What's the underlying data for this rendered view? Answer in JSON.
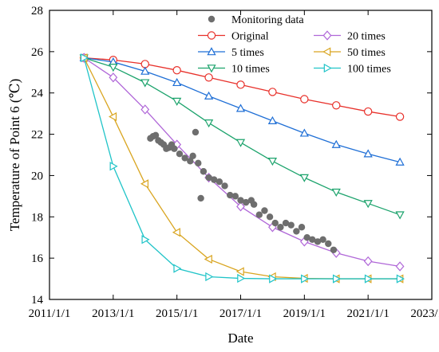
{
  "chart_data": {
    "type": "line",
    "xlabel": "Date",
    "ylabel": "Temperature of Point 6 (℃)",
    "xlim": [
      "2011/1/1",
      "2023/1/1"
    ],
    "ylim": [
      14,
      28
    ],
    "x_ticks": [
      "2011/1/1",
      "2013/1/1",
      "2015/1/1",
      "2017/1/1",
      "2019/1/1",
      "2021/1/1",
      "2023/1/1"
    ],
    "y_ticks": [
      14,
      16,
      18,
      20,
      22,
      24,
      26,
      28
    ],
    "grid": false,
    "legend_position": "top-right",
    "model_x": [
      "2012/2/1",
      "2013/1/1",
      "2014/1/1",
      "2015/1/1",
      "2016/1/1",
      "2017/1/1",
      "2018/1/1",
      "2019/1/1",
      "2020/1/1",
      "2021/1/1",
      "2022/1/1"
    ],
    "series": [
      {
        "name": "Original",
        "marker": "circle",
        "color": "#e8302a",
        "values": [
          25.7,
          25.6,
          25.4,
          25.1,
          24.75,
          24.4,
          24.05,
          23.7,
          23.4,
          23.1,
          22.85
        ]
      },
      {
        "name": "5 times",
        "marker": "triangle-up",
        "color": "#1f6fd6",
        "values": [
          25.7,
          25.5,
          25.05,
          24.5,
          23.85,
          23.25,
          22.65,
          22.05,
          21.5,
          21.05,
          20.65
        ]
      },
      {
        "name": "10 times",
        "marker": "triangle-down",
        "color": "#1ca36c",
        "values": [
          25.7,
          25.25,
          24.5,
          23.6,
          22.55,
          21.6,
          20.7,
          19.9,
          19.2,
          18.65,
          18.1
        ]
      },
      {
        "name": "20 times",
        "marker": "diamond",
        "color": "#b067d8",
        "values": [
          25.7,
          24.75,
          23.2,
          21.5,
          19.9,
          18.5,
          17.5,
          16.8,
          16.25,
          15.85,
          15.6
        ]
      },
      {
        "name": "50 times",
        "marker": "triangle-left",
        "color": "#d9a520",
        "values": [
          25.7,
          22.85,
          19.6,
          17.25,
          15.95,
          15.35,
          15.1,
          15.02,
          15.0,
          15.0,
          15.0
        ]
      },
      {
        "name": "100 times",
        "marker": "triangle-right",
        "color": "#20c4c8",
        "values": [
          25.7,
          20.45,
          16.9,
          15.5,
          15.1,
          15.02,
          15.0,
          15.0,
          15.0,
          15.0,
          15.0
        ]
      }
    ],
    "monitoring": {
      "name": "Monitoring data",
      "color": "#6e6e6e",
      "points": [
        [
          "2014/3/1",
          21.8
        ],
        [
          "2014/4/1",
          21.9
        ],
        [
          "2014/5/1",
          21.95
        ],
        [
          "2014/6/1",
          21.7
        ],
        [
          "2014/7/1",
          21.6
        ],
        [
          "2014/8/1",
          21.5
        ],
        [
          "2014/9/1",
          21.3
        ],
        [
          "2014/10/1",
          21.35
        ],
        [
          "2014/11/1",
          21.5
        ],
        [
          "2014/12/1",
          21.3
        ],
        [
          "2015/2/1",
          21.05
        ],
        [
          "2015/4/1",
          20.85
        ],
        [
          "2015/6/1",
          20.7
        ],
        [
          "2015/7/1",
          20.95
        ],
        [
          "2015/8/1",
          22.1
        ],
        [
          "2015/9/1",
          20.6
        ],
        [
          "2015/10/1",
          18.9
        ],
        [
          "2015/11/1",
          20.2
        ],
        [
          "2016/1/1",
          19.9
        ],
        [
          "2016/3/1",
          19.8
        ],
        [
          "2016/5/1",
          19.7
        ],
        [
          "2016/7/1",
          19.5
        ],
        [
          "2016/9/1",
          19.05
        ],
        [
          "2016/11/1",
          19.0
        ],
        [
          "2017/1/1",
          18.8
        ],
        [
          "2017/3/1",
          18.7
        ],
        [
          "2017/5/1",
          18.8
        ],
        [
          "2017/6/1",
          18.6
        ],
        [
          "2017/8/1",
          18.1
        ],
        [
          "2017/10/1",
          18.3
        ],
        [
          "2017/12/1",
          18.0
        ],
        [
          "2018/2/1",
          17.7
        ],
        [
          "2018/4/1",
          17.5
        ],
        [
          "2018/6/1",
          17.7
        ],
        [
          "2018/8/1",
          17.6
        ],
        [
          "2018/10/1",
          17.3
        ],
        [
          "2018/12/1",
          17.5
        ],
        [
          "2019/2/1",
          17.0
        ],
        [
          "2019/4/1",
          16.9
        ],
        [
          "2019/6/1",
          16.8
        ],
        [
          "2019/8/1",
          16.9
        ],
        [
          "2019/10/1",
          16.7
        ],
        [
          "2019/12/1",
          16.4
        ]
      ]
    }
  }
}
